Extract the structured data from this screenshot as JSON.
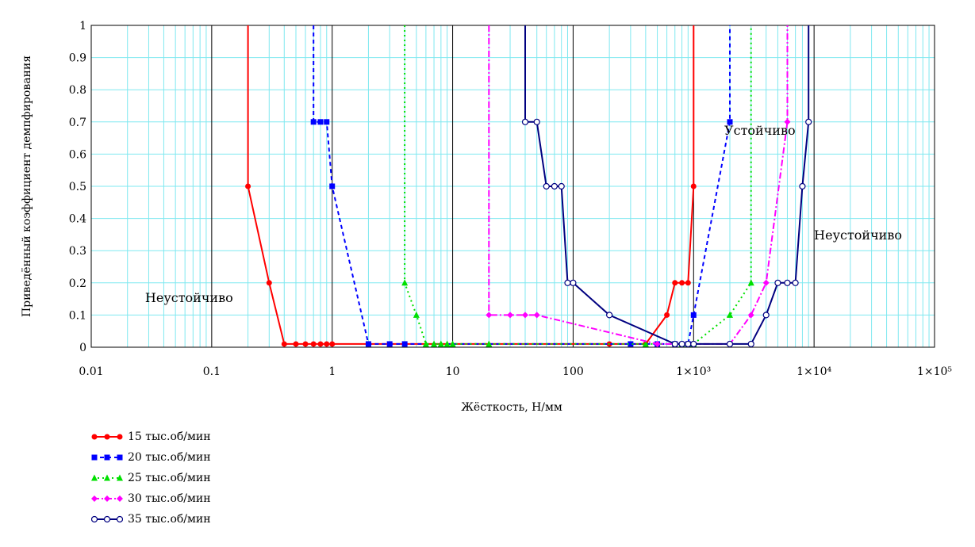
{
  "chart_data": {
    "type": "line",
    "xlabel": "Жёсткость, Н/мм",
    "ylabel": "Приведённый коэффициент демпфирования",
    "x_scale": "log",
    "xlim": [
      0.01,
      100000
    ],
    "ylim": [
      0,
      1
    ],
    "grid": true,
    "x_ticks": [
      "0.01",
      "0.1",
      "1",
      "10",
      "100",
      "1×10³",
      "1×10⁴",
      "1×10⁵"
    ],
    "y_ticks": [
      "0",
      "0.1",
      "0.2",
      "0.3",
      "0.4",
      "0.5",
      "0.6",
      "0.7",
      "0.8",
      "0.9",
      "1"
    ],
    "annotations": [
      {
        "text": "Неустойчиво",
        "x": 0.028,
        "y": 0.14
      },
      {
        "text": "Устойчиво",
        "x": 1800,
        "y": 0.66
      },
      {
        "text": "Неустойчиво",
        "x": 10000,
        "y": 0.335
      }
    ],
    "legend_position": "bottom-left",
    "series": [
      {
        "name": "15 тыс.об/мин",
        "color": "#ff0000",
        "marker": "dot",
        "dash": "",
        "x": [
          0.2,
          0.2,
          0.3,
          0.4,
          0.5,
          0.6,
          0.7,
          0.8,
          0.9,
          1,
          200,
          400,
          600,
          700,
          800,
          900,
          1000,
          1000
        ],
        "y": [
          1,
          0.5,
          0.2,
          0.01,
          0.01,
          0.01,
          0.01,
          0.01,
          0.01,
          0.01,
          0.01,
          0.01,
          0.1,
          0.2,
          0.2,
          0.2,
          0.5,
          1
        ]
      },
      {
        "name": "20 тыс.об/мин",
        "color": "#0000ff",
        "marker": "square",
        "dash": "5,4",
        "x": [
          0.7,
          0.7,
          0.8,
          0.9,
          1,
          2,
          3,
          4,
          300,
          500,
          700,
          900,
          1000,
          2000,
          2000
        ],
        "y": [
          1,
          0.7,
          0.7,
          0.7,
          0.5,
          0.01,
          0.01,
          0.01,
          0.01,
          0.01,
          0.01,
          0.01,
          0.1,
          0.7,
          1
        ]
      },
      {
        "name": "25 тыс.об/мин",
        "color": "#00e000",
        "marker": "triangle",
        "dash": "2,4",
        "x": [
          4,
          4,
          5,
          6,
          7,
          8,
          9,
          10,
          20,
          400,
          800,
          1000,
          2000,
          3000,
          3000
        ],
        "y": [
          1,
          0.2,
          0.1,
          0.01,
          0.01,
          0.01,
          0.01,
          0.01,
          0.01,
          0.01,
          0.01,
          0.01,
          0.1,
          0.2,
          1
        ]
      },
      {
        "name": "30 тыс.об/мин",
        "color": "#ff00ff",
        "marker": "diamond",
        "dash": "8,3,2,3",
        "x": [
          20,
          20,
          30,
          40,
          50,
          500,
          700,
          900,
          2000,
          3000,
          4000,
          6000,
          6000
        ],
        "y": [
          1,
          0.1,
          0.1,
          0.1,
          0.1,
          0.01,
          0.01,
          0.01,
          0.01,
          0.1,
          0.2,
          0.7,
          1
        ]
      },
      {
        "name": "35 тыс.об/мин",
        "color": "#000080",
        "marker": "circle",
        "dash": "",
        "x": [
          40,
          40,
          50,
          60,
          70,
          80,
          90,
          100,
          200,
          700,
          800,
          900,
          1000,
          2000,
          3000,
          4000,
          5000,
          6000,
          7000,
          8000,
          9000,
          9000
        ],
        "y": [
          1,
          0.7,
          0.7,
          0.5,
          0.5,
          0.5,
          0.2,
          0.2,
          0.1,
          0.01,
          0.01,
          0.01,
          0.01,
          0.01,
          0.01,
          0.1,
          0.2,
          0.2,
          0.2,
          0.5,
          0.7,
          1
        ]
      }
    ]
  }
}
